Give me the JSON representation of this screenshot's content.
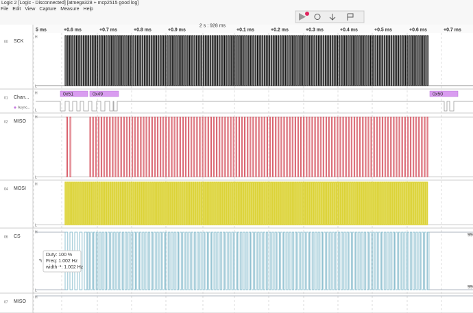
{
  "window": {
    "title": "Logic 2 [Logic - Disconnected] [atmega328 + mcp2515 good log]",
    "menu": [
      "File",
      "Edit",
      "View",
      "Capture",
      "Measure",
      "Help"
    ]
  },
  "ruler": {
    "center": "2 s : 928 ms",
    "ticks": [
      "5 ms",
      "+0.6 ms",
      "+0.7 ms",
      "+0.8 ms",
      "+0.9 ms",
      "+0.1 ms",
      "+0.2 ms",
      "+0.3 ms",
      "+0.4 ms",
      "+0.5 ms",
      "+0.6 ms",
      "+0.7 ms"
    ]
  },
  "levels": {
    "high": "H",
    "low": "L"
  },
  "channels": [
    {
      "index": "00",
      "name": "SCK"
    },
    {
      "index": "01",
      "name": "Chan...",
      "analyzer": "Async...",
      "frames": [
        "0x51",
        "0x49",
        "0x50"
      ]
    },
    {
      "index": "02",
      "name": "MISO"
    },
    {
      "index": "04",
      "name": "MOSI"
    },
    {
      "index": "06",
      "name": "CS",
      "edge_labels": [
        "99",
        "99"
      ]
    },
    {
      "index": "07",
      "name": "MISO"
    }
  ],
  "tooltip": {
    "lines": [
      "Duty: 100 %",
      "Freq: 1.002 Hz",
      "width⁻¹: 1.002 Hz"
    ]
  }
}
